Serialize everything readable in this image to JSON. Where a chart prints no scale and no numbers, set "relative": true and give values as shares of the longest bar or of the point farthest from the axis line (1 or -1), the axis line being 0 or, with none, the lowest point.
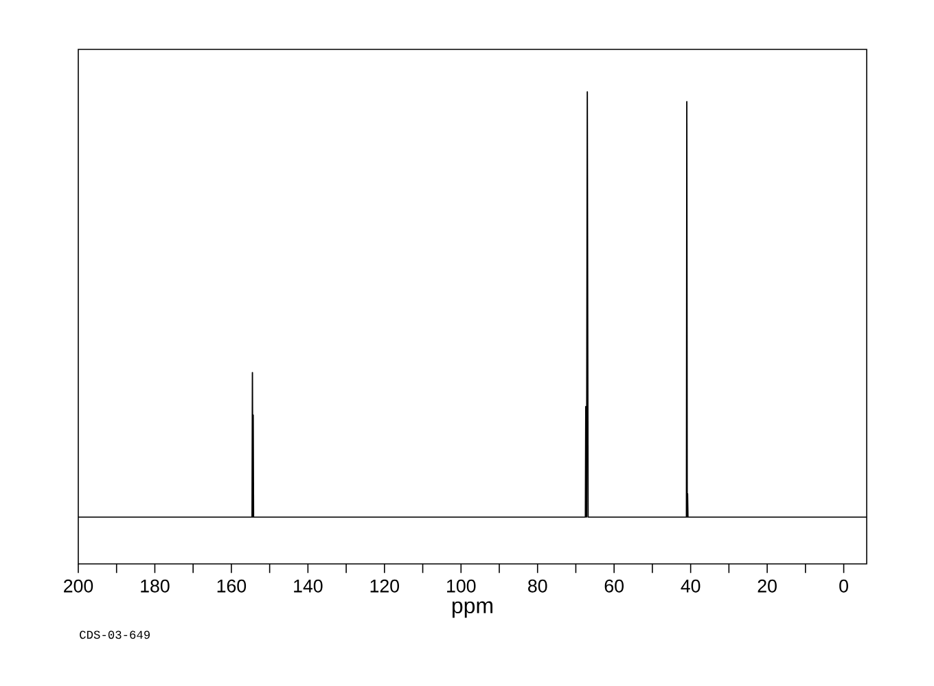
{
  "chart_data": {
    "type": "line",
    "relative": true,
    "xlabel": "ppm",
    "annotations": [
      "CDS-03-649"
    ],
    "xlim": [
      200,
      -6
    ],
    "xticks": [
      200,
      180,
      160,
      140,
      120,
      100,
      80,
      60,
      40,
      20,
      0
    ],
    "x": [
      200,
      154.6,
      154.5,
      154.4,
      154.3,
      154.2,
      67.5,
      67.4,
      67.2,
      67.0,
      66.8,
      41.1,
      41.0,
      40.9,
      40.8,
      40.7,
      -6
    ],
    "values": [
      0,
      0,
      0.34,
      0,
      0.24,
      0,
      0,
      0.26,
      0,
      1,
      0,
      0,
      0.977,
      0,
      0.055,
      0,
      0
    ],
    "color": "#000000"
  }
}
